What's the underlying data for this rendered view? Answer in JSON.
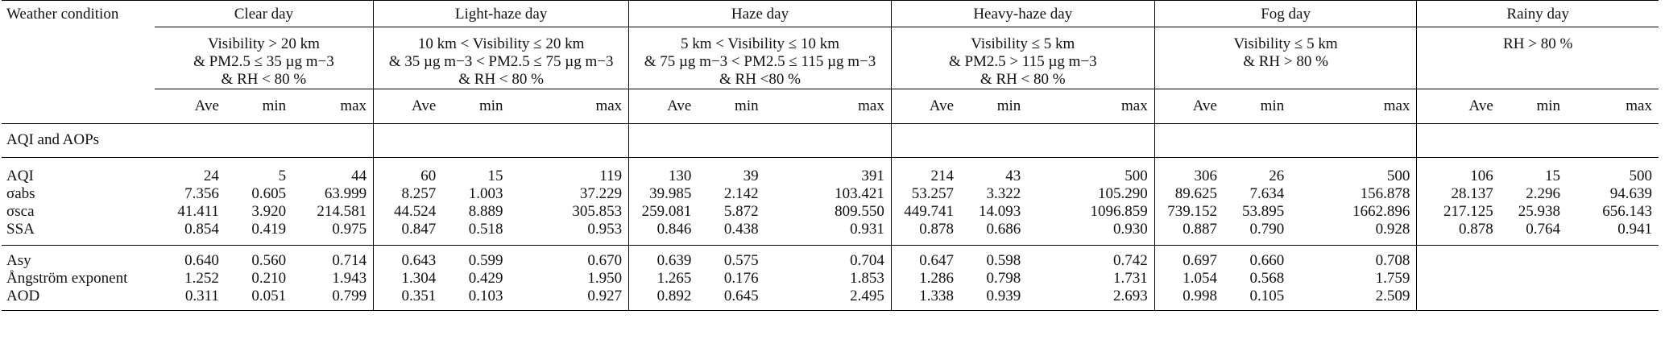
{
  "header": {
    "corner": "Weather condition",
    "conditions": [
      {
        "name": "Clear day",
        "criteria": [
          "Visibility > 20 km",
          "& PM2.5 ≤ 35 µg m−3",
          "& RH < 80 %"
        ]
      },
      {
        "name": "Light-haze day",
        "criteria": [
          "10 km < Visibility ≤ 20 km",
          "& 35 µg m−3 < PM2.5 ≤ 75 µg m−3",
          "& RH < 80 %"
        ]
      },
      {
        "name": "Haze day",
        "criteria": [
          "5 km < Visibility ≤ 10 km",
          "& 75 µg m−3 < PM2.5 ≤ 115 µg m−3",
          "& RH <80 %"
        ]
      },
      {
        "name": "Heavy-haze day",
        "criteria": [
          "Visibility ≤ 5 km",
          "& PM2.5 > 115 µg m−3",
          "& RH < 80 %"
        ]
      },
      {
        "name": "Fog day",
        "criteria": [
          "Visibility ≤ 5 km",
          "& RH > 80 %"
        ]
      },
      {
        "name": "Rainy day",
        "criteria": [
          "RH > 80 %"
        ]
      }
    ],
    "stats": [
      "Ave",
      "min",
      "max"
    ]
  },
  "section_label": "AQI and AOPs",
  "rows": [
    {
      "label": "AQI",
      "values": [
        "24",
        "5",
        "44",
        "60",
        "15",
        "119",
        "130",
        "39",
        "391",
        "214",
        "43",
        "500",
        "306",
        "26",
        "500",
        "106",
        "15",
        "500"
      ]
    },
    {
      "label": "σabs",
      "values": [
        "7.356",
        "0.605",
        "63.999",
        "8.257",
        "1.003",
        "37.229",
        "39.985",
        "2.142",
        "103.421",
        "53.257",
        "3.322",
        "105.290",
        "89.625",
        "7.634",
        "156.878",
        "28.137",
        "2.296",
        "94.639"
      ]
    },
    {
      "label": "σsca",
      "values": [
        "41.411",
        "3.920",
        "214.581",
        "44.524",
        "8.889",
        "305.853",
        "259.081",
        "5.872",
        "809.550",
        "449.741",
        "14.093",
        "1096.859",
        "739.152",
        "53.895",
        "1662.896",
        "217.125",
        "25.938",
        "656.143"
      ]
    },
    {
      "label": "SSA",
      "values": [
        "0.854",
        "0.419",
        "0.975",
        "0.847",
        "0.518",
        "0.953",
        "0.846",
        "0.438",
        "0.931",
        "0.878",
        "0.686",
        "0.930",
        "0.887",
        "0.790",
        "0.928",
        "0.878",
        "0.764",
        "0.941"
      ]
    },
    {
      "label": "Asy",
      "values": [
        "0.640",
        "0.560",
        "0.714",
        "0.643",
        "0.599",
        "0.670",
        "0.639",
        "0.575",
        "0.704",
        "0.647",
        "0.598",
        "0.742",
        "0.697",
        "0.660",
        "0.708",
        "",
        "",
        ""
      ]
    },
    {
      "label": "Ångström exponent",
      "values": [
        "1.252",
        "0.210",
        "1.943",
        "1.304",
        "0.429",
        "1.950",
        "1.265",
        "0.176",
        "1.853",
        "1.286",
        "0.798",
        "1.731",
        "1.054",
        "0.568",
        "1.759",
        "",
        "",
        ""
      ]
    },
    {
      "label": "AOD",
      "values": [
        "0.311",
        "0.051",
        "0.799",
        "0.351",
        "0.103",
        "0.927",
        "0.892",
        "0.645",
        "2.495",
        "1.338",
        "0.939",
        "2.693",
        "0.998",
        "0.105",
        "2.509",
        "",
        "",
        ""
      ]
    }
  ]
}
